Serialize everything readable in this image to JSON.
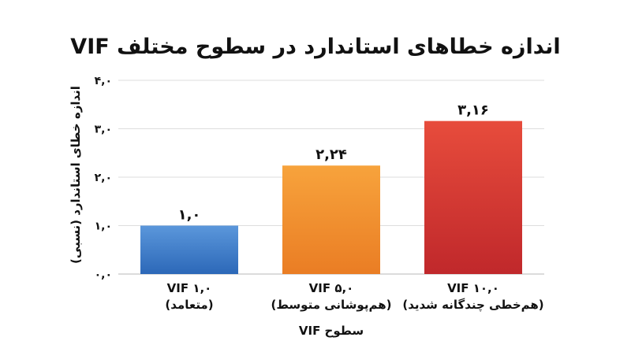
{
  "chart_data": {
    "type": "bar",
    "title": "اندازه خطاهای استاندارد در سطوح مختلف VIF",
    "xlabel": "سطوح VIF",
    "ylabel": "اندازه خطای استاندارد (نسبی)",
    "ylim": [
      0,
      4
    ],
    "yticks": [
      0,
      1,
      2,
      3,
      4
    ],
    "ytick_labels": [
      "۰,۰",
      "۱,۰",
      "۲,۰",
      "۳,۰",
      "۴,۰"
    ],
    "grid": true,
    "categories": [
      {
        "line1": "VIF ۱,۰",
        "line2": "(متعامد)"
      },
      {
        "line1": "VIF ۵,۰",
        "line2": "(هم‌پوشانی متوسط)"
      },
      {
        "line1": "VIF ۱۰,۰",
        "line2": "(هم‌خطی چندگانه شدید)"
      }
    ],
    "values": [
      1.0,
      2.24,
      3.16
    ],
    "value_labels": [
      "۱,۰",
      "۲,۲۴",
      "۳,۱۶"
    ],
    "colors": [
      [
        "#5b97db",
        "#2c68b8"
      ],
      [
        "#f7a33c",
        "#ea7d24"
      ],
      [
        "#e74c3c",
        "#c0282b"
      ]
    ]
  }
}
